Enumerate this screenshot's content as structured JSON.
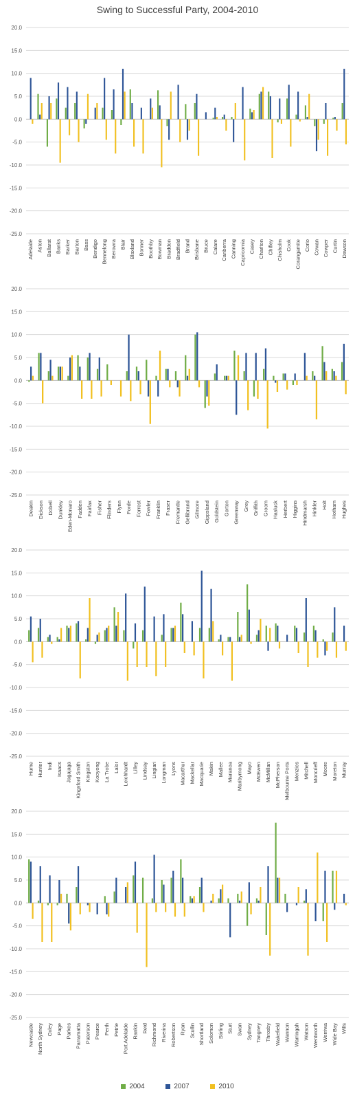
{
  "chart_data": {
    "type": "bar",
    "title": "Swing to Successful Party, 2004-2010",
    "ylim": [
      -25,
      20
    ],
    "yticks": [
      "20.0",
      "15.0",
      "10.0",
      "5.0",
      "0.0",
      "-5.0",
      "-10.0",
      "-15.0",
      "-20.0",
      "-25.0"
    ],
    "grid": true,
    "legend_position": "bottom",
    "colors": {
      "2004": "#70ad47",
      "2007": "#2e5597",
      "2010": "#f1c021"
    },
    "series_names": [
      "2004",
      "2007",
      "2010"
    ],
    "panels": [
      {
        "categories": [
          "Adelaide",
          "Aston",
          "Ballarat",
          "Banks",
          "Barker",
          "Barton",
          "Bass",
          "Bendigo",
          "Bennelong",
          "Berowra",
          "Blair",
          "Blaxland",
          "Bonner",
          "Boothby",
          "Bowman",
          "Braddon",
          "Bradfield",
          "Brand",
          "Brisbane",
          "Bruce",
          "Calare",
          "Canberra",
          "Canning",
          "Capricornia",
          "Casey",
          "Charlton",
          "Chifley",
          "Chisholm",
          "Cook",
          "Corangamite",
          "Corio",
          "Cowan",
          "Cowper",
          "Curtin",
          "Dawson"
        ],
        "values_2004": [
          0,
          5.5,
          -6.0,
          4.5,
          2.5,
          3.5,
          -2.0,
          0,
          2.5,
          2.0,
          -1.3,
          6.5,
          0,
          0,
          6.3,
          -1.5,
          0,
          3.3,
          3.5,
          0,
          0.3,
          0.5,
          0.5,
          0,
          2.3,
          5.5,
          6.0,
          -0.7,
          4.5,
          1.0,
          3.0,
          -1.5,
          -1.0,
          0.3,
          3.5
        ],
        "values_2007": [
          9.0,
          1.0,
          5.0,
          8.0,
          7.0,
          6.0,
          -1.0,
          2.5,
          9.0,
          6.5,
          11.0,
          3.5,
          2.5,
          4.5,
          3.0,
          -4.5,
          7.5,
          -4.5,
          5.5,
          1.5,
          2.5,
          1.0,
          -5.0,
          7.0,
          1.5,
          6.0,
          5.0,
          4.5,
          7.5,
          6.0,
          0.5,
          -7.0,
          3.5,
          0.5,
          11.0
        ],
        "values_2010": [
          -1.0,
          3.5,
          3.5,
          -9.5,
          -3.5,
          -5.0,
          5.5,
          3.5,
          -4.5,
          -7.5,
          6.0,
          -6.0,
          -7.5,
          2.5,
          -10.5,
          6.0,
          -5.0,
          -2.5,
          -8.0,
          0,
          0.5,
          -2.5,
          3.5,
          -9.0,
          2.0,
          7.0,
          -8.5,
          -1.0,
          -6.0,
          -0.5,
          5.5,
          -4.5,
          -8.0,
          -2.5,
          -5.5
        ]
      },
      {
        "categories": [
          "Deakin",
          "Dickson",
          "Dobell",
          "Dunkley",
          "Eden-Monaro",
          "Fadden",
          "Fairfax",
          "Fisher",
          "Flinders",
          "Flynn",
          "Forde",
          "Forrest",
          "Fowler",
          "Franklin",
          "Fraser",
          "Fremantle",
          "Gellibrand",
          "Gilmore",
          "Gippsland",
          "Goldstein",
          "Gorton",
          "Greenway",
          "Grey",
          "Griffith",
          "Groom",
          "Hasluck",
          "Herbert",
          "Higgins",
          "Hindmarsh",
          "Hinkler",
          "Holt",
          "Hotham",
          "Hughes"
        ],
        "values_2004": [
          -0.3,
          6.0,
          2.0,
          3.0,
          1.0,
          5.5,
          5.0,
          2.5,
          3.5,
          0,
          2.0,
          3.0,
          4.5,
          1.0,
          2.5,
          2.0,
          5.5,
          10.0,
          -6.0,
          1.5,
          1.0,
          6.5,
          2.0,
          -3.5,
          2.5,
          1.0,
          1.5,
          -1.0,
          0,
          2.0,
          7.5,
          2.5,
          4.0
        ],
        "values_2007": [
          3.0,
          6.0,
          4.5,
          3.0,
          5.0,
          3.0,
          6.0,
          5.0,
          0,
          0,
          10.0,
          2.0,
          -3.5,
          -3.5,
          2.5,
          -1.5,
          1.0,
          10.5,
          -3.5,
          3.5,
          1.0,
          -7.5,
          6.0,
          6.0,
          7.0,
          -0.5,
          1.5,
          1.5,
          6.0,
          1.0,
          4.0,
          2.0,
          8.0
        ],
        "values_2010": [
          1.0,
          -5.0,
          1.0,
          3.0,
          5.5,
          -4.0,
          -4.0,
          -3.5,
          -1.0,
          -3.5,
          -4.5,
          -3.0,
          -9.5,
          6.5,
          -1.5,
          -3.5,
          2.5,
          -1.5,
          -5.5,
          0,
          1.0,
          5.5,
          -6.5,
          -4.0,
          -10.5,
          -2.5,
          -2.0,
          -1.0,
          1.0,
          -8.5,
          2.0,
          1.0,
          -3.0
        ]
      },
      {
        "categories": [
          "Hume",
          "Hunter",
          "Indi",
          "Isaacs",
          "Jagajaga",
          "Kingsford Smith",
          "Kingston",
          "Kooyong",
          "La Trobe",
          "Lalor",
          "Leichhardt",
          "Lilley",
          "Lindsay",
          "Lingiari",
          "Longman",
          "Lyons",
          "Macarthur",
          "Mackellar",
          "Macquarie",
          "Makin",
          "Mallee",
          "Maranoa",
          "Maribyrnong",
          "Mayo",
          "McEwen",
          "McMillan",
          "McPherson",
          "Melbourne Ports",
          "Menzies",
          "Mitchell",
          "Moncrieff",
          "Moore",
          "Moreton",
          "Murray"
        ],
        "values_2004": [
          2.5,
          3.0,
          1.0,
          1.0,
          3.5,
          4.0,
          0.5,
          -0.5,
          2.5,
          7.5,
          2.5,
          -1.5,
          2.5,
          0,
          1.5,
          3.0,
          8.5,
          0,
          3.0,
          3.0,
          0.5,
          1.0,
          6.5,
          12.5,
          1.5,
          3.5,
          4.0,
          0,
          3.5,
          2.0,
          3.5,
          0.5,
          2.0,
          0
        ],
        "values_2007": [
          5.5,
          5.0,
          1.5,
          0.5,
          3.0,
          4.5,
          3.0,
          1.5,
          3.0,
          3.5,
          10.5,
          4.0,
          12.0,
          5.5,
          6.0,
          3.0,
          6.0,
          4.5,
          15.5,
          11.5,
          1.5,
          1.0,
          1.0,
          7.0,
          2.5,
          -2.0,
          3.5,
          1.5,
          3.0,
          9.5,
          2.5,
          -3.0,
          7.5,
          3.5
        ],
        "values_2010": [
          -4.5,
          -3.5,
          -0.5,
          3.0,
          3.5,
          -8.0,
          9.5,
          2.0,
          3.5,
          6.5,
          -8.5,
          -5.5,
          -5.5,
          -7.5,
          -5.5,
          3.5,
          -2.5,
          -3.0,
          -8.0,
          4.5,
          -3.0,
          -8.5,
          1.5,
          -0.5,
          5.0,
          3.0,
          -1.5,
          0,
          -2.5,
          -5.5,
          -3.5,
          -2.0,
          -3.5,
          -2.0
        ]
      },
      {
        "categories": [
          "Newcastle",
          "North Sydney",
          "Oxley",
          "Page",
          "Parkes",
          "Parramatta",
          "Paterson",
          "Pearce",
          "Perth",
          "Petrie",
          "Port Adelaide",
          "Rankin",
          "Reid",
          "Richmond",
          "Riverina",
          "Robertson",
          "Ryan",
          "Scullin",
          "Shortland",
          "Solomon",
          "Stirling",
          "Sturt",
          "Swan",
          "Sydney",
          "Tangney",
          "Throsby",
          "Wakefield",
          "Wannon",
          "Warringah",
          "Watson",
          "Wentworth",
          "Werriwa",
          "Wide Bay",
          "Wills"
        ],
        "values_2004": [
          9.5,
          0.5,
          -0.5,
          -0.5,
          2.0,
          3.5,
          0,
          0,
          1.5,
          2.5,
          0,
          6.0,
          5.5,
          1.0,
          5.0,
          5.5,
          9.5,
          1.5,
          3.5,
          0,
          1.0,
          1.0,
          2.0,
          -5.0,
          1.0,
          -7.0,
          17.5,
          2.0,
          0,
          0.5,
          0,
          -4.0,
          7.0,
          0
        ],
        "values_2007": [
          9.0,
          8.0,
          6.0,
          5.0,
          -4.5,
          8.0,
          -0.5,
          -2.5,
          -2.5,
          5.5,
          3.5,
          9.0,
          0,
          10.5,
          4.0,
          7.0,
          5.5,
          1.0,
          5.5,
          0.5,
          3.0,
          -7.5,
          0.5,
          4.5,
          0.5,
          8.0,
          5.5,
          -2.0,
          -0.5,
          3.0,
          -4.0,
          7.0,
          -1.5,
          2.0
        ],
        "values_2010": [
          -3.5,
          -8.5,
          -8.5,
          2.0,
          -6.0,
          -2.5,
          -2.0,
          0,
          -3.0,
          0,
          4.5,
          -6.5,
          -14.0,
          -2.0,
          -2.0,
          -3.0,
          -3.0,
          1.5,
          -2.0,
          2.0,
          4.0,
          0,
          2.5,
          -2.5,
          3.5,
          -11.5,
          5.5,
          0,
          3.5,
          -11.5,
          11.0,
          -8.5,
          7.0,
          -0.5
        ]
      }
    ]
  }
}
